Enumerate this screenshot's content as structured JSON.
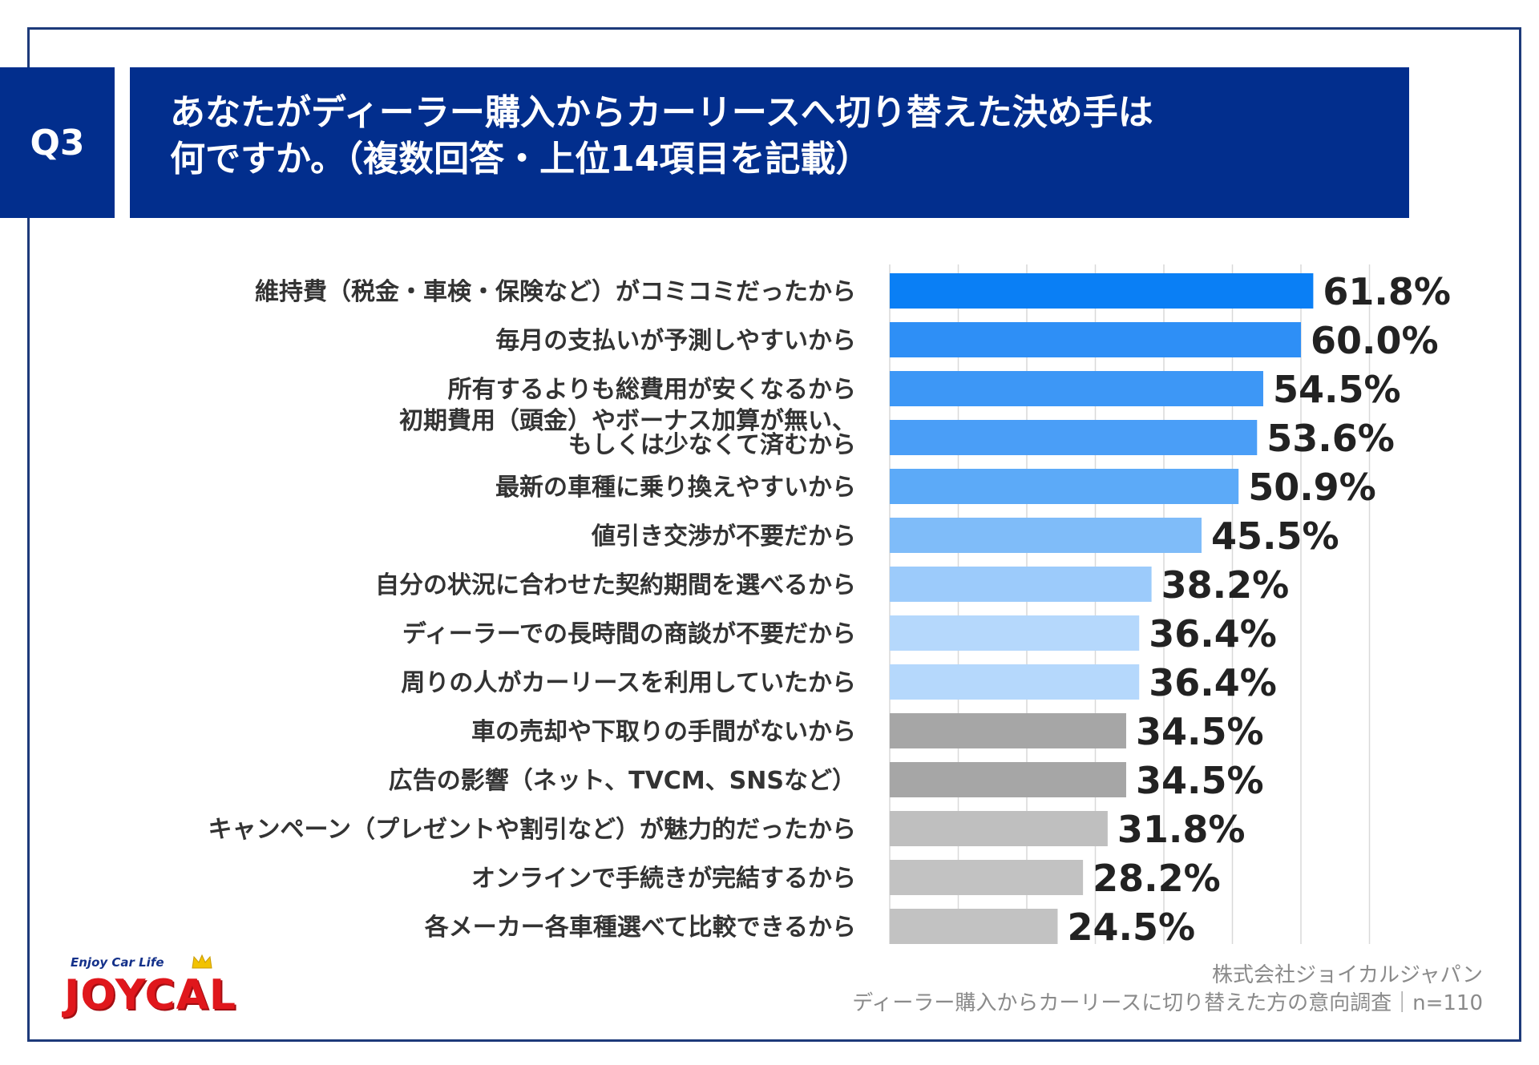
{
  "question_label": "Q3",
  "title_lines": [
    "あなたがディーラー購入からカーリースへ切り替えた決め手は",
    "何ですか。（複数回答・上位14項目を記載）"
  ],
  "chart_data": {
    "type": "bar",
    "orientation": "horizontal",
    "title": "あなたがディーラー購入からカーリースへ切り替えた決め手は何ですか。（複数回答・上位14項目を記載）",
    "xlim": [
      0,
      70
    ],
    "grid": true,
    "unit": "%",
    "categories": [
      [
        "維持費（税金・車検・保険など）がコミコミだったから"
      ],
      [
        "毎月の支払いが予測しやすいから"
      ],
      [
        "所有するよりも総費用が安くなるから"
      ],
      [
        "初期費用（頭金）やボーナス加算が無い、",
        "もしくは少なくて済むから"
      ],
      [
        "最新の車種に乗り換えやすいから"
      ],
      [
        "値引き交渉が不要だから"
      ],
      [
        "自分の状況に合わせた契約期間を選べるから"
      ],
      [
        "ディーラーでの長時間の商談が不要だから"
      ],
      [
        "周りの人がカーリースを利用していたから"
      ],
      [
        "車の売却や下取りの手間がないから"
      ],
      [
        "広告の影響（ネット、TVCM、SNSなど）"
      ],
      [
        "キャンペーン（プレゼントや割引など）が魅力的だったから"
      ],
      [
        "オンラインで手続きが完結するから"
      ],
      [
        "各メーカー各車種選べて比較できるから"
      ]
    ],
    "values": [
      61.8,
      60.0,
      54.5,
      53.6,
      50.9,
      45.5,
      38.2,
      36.4,
      36.4,
      34.5,
      34.5,
      31.8,
      28.2,
      24.5
    ],
    "value_labels": [
      "61.8%",
      "60.0%",
      "54.5%",
      "53.6%",
      "50.9%",
      "45.5%",
      "38.2%",
      "36.4%",
      "36.4%",
      "34.5%",
      "34.5%",
      "31.8%",
      "28.2%",
      "24.5%"
    ],
    "bar_colors": [
      "#0a7ff5",
      "#2e8ff6",
      "#3d97f6",
      "#4a9ef7",
      "#5caaf8",
      "#7fbcf9",
      "#9ccbfb",
      "#b5d8fc",
      "#b5d8fc",
      "#a6a6a6",
      "#a6a6a6",
      "#bfbfbf",
      "#c2c2c2",
      "#c2c2c2"
    ]
  },
  "footer": {
    "company": "株式会社ジョイカルジャパン",
    "survey": "ディーラー購入からカーリースに切り替えた方の意向調査｜n=110"
  },
  "logo": {
    "tagline": "Enjoy Car Life",
    "wordmark": "JOYCAL"
  },
  "colors": {
    "header_bg": "#022e8d",
    "frame": "#1d3a7a"
  }
}
